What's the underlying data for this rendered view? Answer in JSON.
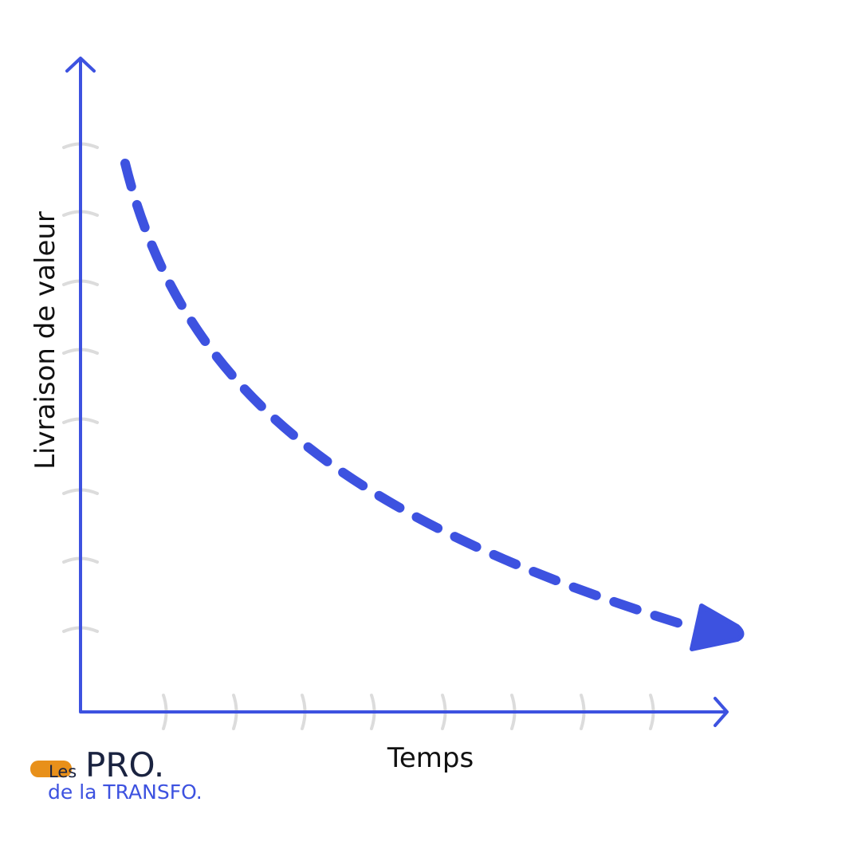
{
  "y_axis_label": "Livraison de valeur",
  "x_axis_label": "Temps",
  "logo": {
    "small": "Les",
    "big": "PRO.",
    "sub": "de la TRANSFO."
  }
}
